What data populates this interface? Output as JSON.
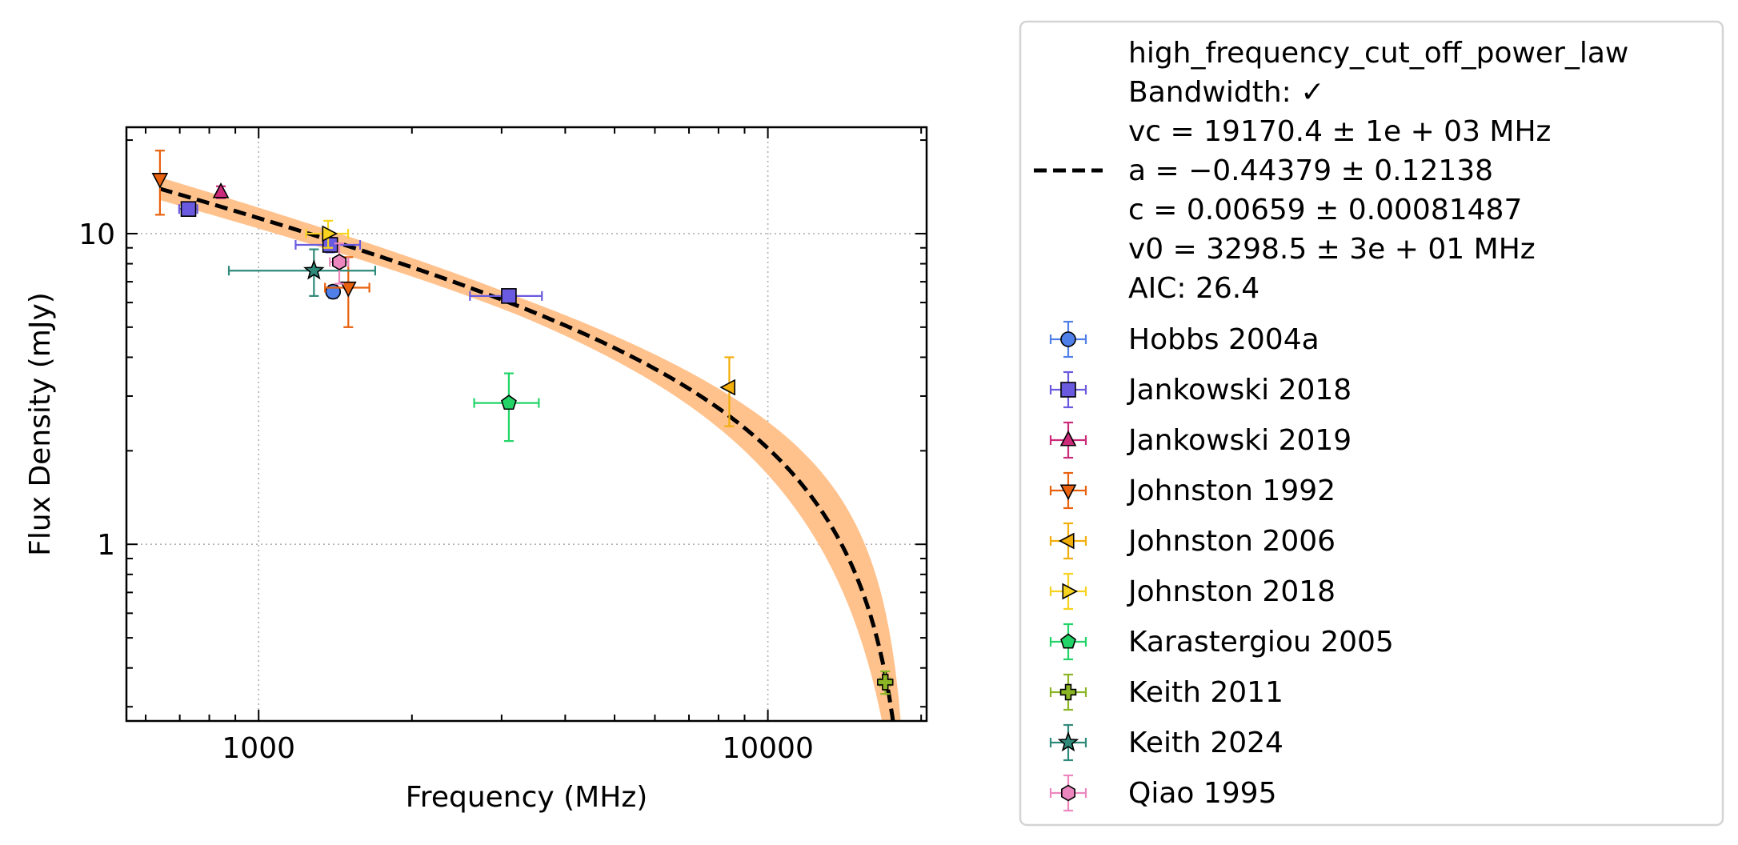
{
  "chart_data": {
    "type": "scatter",
    "xlabel": "Frequency (MHz)",
    "ylabel": "Flux Density (mJy)",
    "xscale": "log",
    "yscale": "log",
    "xlim": [
      550,
      20500
    ],
    "ylim": [
      0.27,
      22
    ],
    "x_ticks": [
      1000,
      10000
    ],
    "x_tick_labels": [
      "1000",
      "10000"
    ],
    "y_ticks": [
      1,
      10
    ],
    "y_tick_labels": [
      "1",
      "10"
    ],
    "grid": true,
    "legend_placement": "outside-right",
    "fit": {
      "model": "high_frequency_cut_off_power_law",
      "label_lines": [
        "high_frequency_cut_off_power_law",
        "Bandwidth: ✓",
        "vc = 19170.4 ± 1e + 03 MHz",
        "a = −0.44379 ± 0.12138",
        "c = 0.00659 ± 0.00081487",
        "v0 = 3298.5 ± 3e + 01 MHz",
        "AIC: 26.4"
      ],
      "vc": 19170.4,
      "a": -0.44379,
      "c": 0.00659,
      "v0": 3298.5,
      "x_range": [
        640,
        18300
      ],
      "line_color": "#000000",
      "band_color": "#ffbf87"
    },
    "series": [
      {
        "name": "Hobbs 2004a",
        "color": "#4f7fe8",
        "marker": "circle",
        "points": [
          {
            "x": 1400,
            "y": 6.5,
            "xerr": 0,
            "yerr": 0.3
          }
        ]
      },
      {
        "name": "Jankowski 2018",
        "color": "#6a5ae0",
        "marker": "square",
        "points": [
          {
            "x": 728,
            "y": 12.0,
            "xerr": 30,
            "yerr": 0.5
          },
          {
            "x": 1382,
            "y": 9.2,
            "xerr": 200,
            "yerr": 0.5
          },
          {
            "x": 3100,
            "y": 6.3,
            "xerr": 500,
            "yerr": 0.3
          }
        ]
      },
      {
        "name": "Jankowski 2019",
        "color": "#cc2b7a",
        "marker": "triangle-up",
        "points": [
          {
            "x": 843,
            "y": 13.6,
            "xerr": 0,
            "yerr": 0.6
          }
        ]
      },
      {
        "name": "Johnston 1992",
        "color": "#e8620f",
        "marker": "triangle-down",
        "points": [
          {
            "x": 640,
            "y": 15.0,
            "xerr": 0,
            "yerr": 3.5
          },
          {
            "x": 1500,
            "y": 6.7,
            "xerr": 150,
            "yerr": 1.7
          }
        ]
      },
      {
        "name": "Johnston 2006",
        "color": "#f2ae0b",
        "marker": "triangle-left",
        "points": [
          {
            "x": 8400,
            "y": 3.2,
            "xerr": 0,
            "yerr": 0.8
          }
        ]
      },
      {
        "name": "Johnston 2018",
        "color": "#f7d21e",
        "marker": "triangle-right",
        "points": [
          {
            "x": 1369,
            "y": 10.0,
            "xerr": 130,
            "yerr": 1.0
          }
        ]
      },
      {
        "name": "Karastergiou 2005",
        "color": "#22d468",
        "marker": "pentagon",
        "points": [
          {
            "x": 3100,
            "y": 2.85,
            "xerr": 450,
            "yerr": 0.7
          }
        ]
      },
      {
        "name": "Keith 2011",
        "color": "#8bb525",
        "marker": "plus",
        "points": [
          {
            "x": 17000,
            "y": 0.36,
            "xerr": 400,
            "yerr": 0.03
          }
        ]
      },
      {
        "name": "Keith 2024",
        "color": "#2f8a7a",
        "marker": "star",
        "points": [
          {
            "x": 1284,
            "y": 7.6,
            "xerr": 410,
            "yerr": 1.3
          }
        ]
      },
      {
        "name": "Qiao 1995",
        "color": "#ec86be",
        "marker": "hexagon",
        "points": [
          {
            "x": 1440,
            "y": 8.1,
            "xerr": 60,
            "yerr": 1.2
          }
        ]
      }
    ]
  }
}
